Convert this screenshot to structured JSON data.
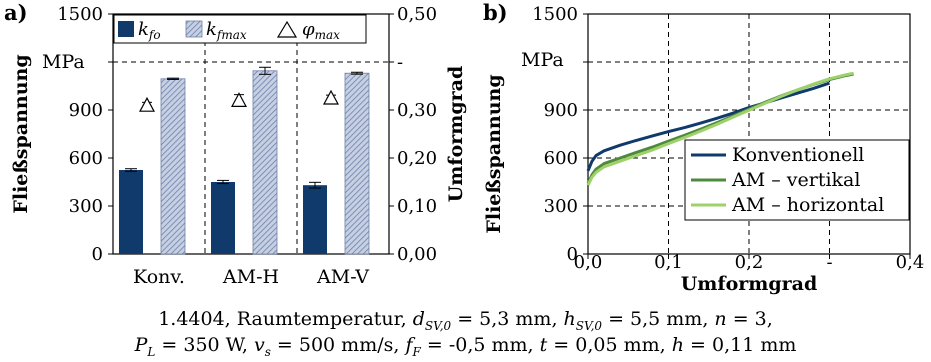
{
  "chart_data": [
    {
      "panel_label": "a)",
      "type": "bar",
      "categories": [
        "Konv.",
        "AM-H",
        "AM-V"
      ],
      "ylabel": "Fließspannung",
      "ylabel_unit": "MPa",
      "ylim": [
        0,
        1500
      ],
      "yticks": [
        "0",
        "300",
        "600",
        "900",
        "",
        "1500"
      ],
      "y2label": "Umformgrad",
      "y2lim": [
        0,
        0.5
      ],
      "y2ticks": [
        "0,00",
        "0,10",
        "0,20",
        "0,30",
        "-",
        "0,50"
      ],
      "grid": "horizontal dashed at 1200; vertical dashed between groups",
      "legend_position": "top",
      "legend": [
        {
          "symbol": "k",
          "sub": "fo",
          "style": "solid-dark-blue"
        },
        {
          "symbol": "k",
          "sub": "fmax",
          "style": "hatched-light-blue"
        },
        {
          "symbol": "φ",
          "sub": "max",
          "style": "triangle-marker"
        }
      ],
      "series": [
        {
          "key": "k_fo",
          "values": [
            525,
            450,
            430
          ],
          "errors": [
            8,
            10,
            18
          ]
        },
        {
          "key": "k_fmax",
          "values": [
            1095,
            1145,
            1130
          ],
          "errors": [
            4,
            22,
            6
          ]
        },
        {
          "key": "phi_max",
          "axis": "secondary",
          "values": [
            0.31,
            0.32,
            0.325
          ],
          "errors": [
            0.006,
            0.012,
            0.006
          ]
        }
      ],
      "colors": {
        "k_fo": "#0f3a6b",
        "k_fmax": "#b8c4dc",
        "hatch": "#6e7fa6"
      }
    },
    {
      "panel_label": "b)",
      "type": "line",
      "xlabel": "Umformgrad",
      "ylabel": "Fließspannung",
      "ylabel_unit": "MPa",
      "xlim": [
        0,
        0.4
      ],
      "ylim": [
        0,
        1500
      ],
      "xticks": [
        "0,0",
        "0,1",
        "0,2",
        "-",
        "0,4"
      ],
      "yticks": [
        "0",
        "300",
        "600",
        "900",
        "",
        "1500"
      ],
      "grid": "dashed",
      "legend_position": "bottom-right",
      "series": [
        {
          "name": "Konventionell",
          "color": "#0f3a6b",
          "x": [
            0,
            0.005,
            0.01,
            0.02,
            0.04,
            0.06,
            0.08,
            0.1,
            0.12,
            0.14,
            0.16,
            0.18,
            0.2,
            0.22,
            0.24,
            0.26,
            0.28,
            0.3
          ],
          "y": [
            520,
            580,
            615,
            645,
            680,
            710,
            738,
            765,
            790,
            818,
            848,
            880,
            915,
            945,
            975,
            1005,
            1035,
            1068
          ]
        },
        {
          "name": "AM – vertikal",
          "color": "#4e8a3c",
          "x": [
            0,
            0.005,
            0.01,
            0.02,
            0.04,
            0.06,
            0.08,
            0.1,
            0.12,
            0.14,
            0.16,
            0.18,
            0.2,
            0.22,
            0.24,
            0.26,
            0.28,
            0.3,
            0.32,
            0.33
          ],
          "y": [
            440,
            495,
            530,
            565,
            600,
            635,
            668,
            705,
            742,
            780,
            820,
            862,
            905,
            948,
            988,
            1025,
            1060,
            1090,
            1115,
            1125
          ]
        },
        {
          "name": "AM – horizontal",
          "color": "#9fd16b",
          "x": [
            0,
            0.005,
            0.01,
            0.02,
            0.04,
            0.06,
            0.08,
            0.1,
            0.12,
            0.14,
            0.16,
            0.18,
            0.2,
            0.22,
            0.24,
            0.26,
            0.28,
            0.3,
            0.32,
            0.33
          ],
          "y": [
            430,
            480,
            510,
            545,
            580,
            615,
            650,
            690,
            728,
            768,
            810,
            855,
            898,
            942,
            985,
            1025,
            1062,
            1095,
            1120,
            1130
          ]
        }
      ]
    }
  ],
  "caption": {
    "line1": {
      "material": "1.4404, Raumtemperatur, ",
      "d_sym": "d",
      "d_sub": "SV,0",
      "d_val": " = 5,3 mm, ",
      "h_sym": "h",
      "h_sub": "SV,0",
      "h_val": " = 5,5 mm, ",
      "n_sym": "n",
      "n_val": " = 3,"
    },
    "line2": {
      "P_sym": "P",
      "P_sub": "L",
      "P_val": " = 350 W, ",
      "v_sym": "v",
      "v_sub": "s",
      "v_val": " = 500 mm/s, ",
      "f_sym": "f",
      "f_sub": "F",
      "f_val": " = -0,5 mm, ",
      "t_sym": "t",
      "t_val": " = 0,05 mm, ",
      "hh_sym": "h",
      "hh_val": " = 0,11 mm"
    }
  }
}
